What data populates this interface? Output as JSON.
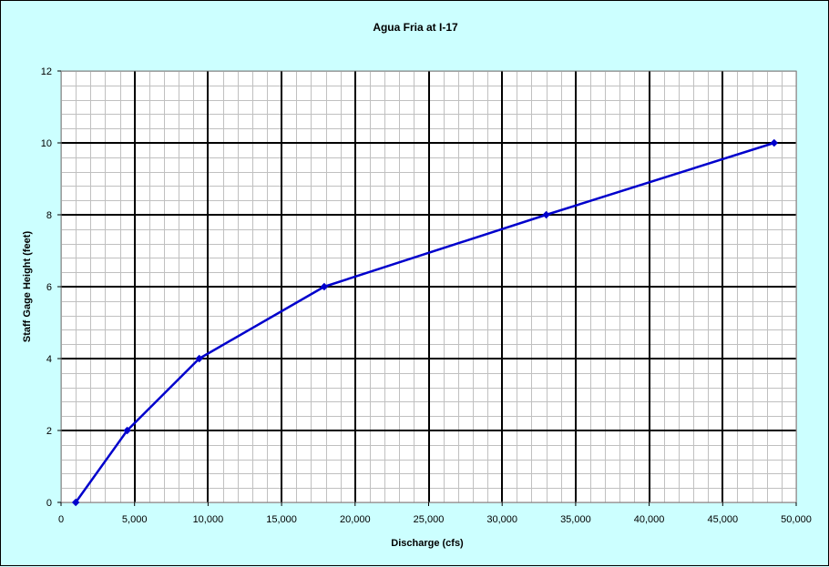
{
  "chart_data": {
    "type": "line",
    "title": "Agua Fria at I-17",
    "xlabel": "Discharge (cfs)",
    "ylabel": "Staff Gage Height (feet)",
    "xlim": [
      0,
      50000
    ],
    "ylim": [
      0,
      12
    ],
    "x_major_step": 5000,
    "y_major_step": 2,
    "x_tick_labels": [
      "0",
      "5,000",
      "10,000",
      "15,000",
      "20,000",
      "25,000",
      "30,000",
      "35,000",
      "40,000",
      "45,000",
      "50,000"
    ],
    "y_tick_labels": [
      "0",
      "2",
      "4",
      "6",
      "8",
      "10",
      "12"
    ],
    "grid": true,
    "legend": "none",
    "series": [
      {
        "color": "#0000cc",
        "points": [
          {
            "x": 1000,
            "y": 0
          },
          {
            "x": 4500,
            "y": 2
          },
          {
            "x": 9400,
            "y": 4
          },
          {
            "x": 17900,
            "y": 6
          },
          {
            "x": 33000,
            "y": 8
          },
          {
            "x": 48500,
            "y": 10
          }
        ]
      }
    ]
  },
  "colors": {
    "background": "#ccffff",
    "plot_area": "#ffffff",
    "minor_grid": "#c0c0c0",
    "major_grid": "#000000"
  }
}
